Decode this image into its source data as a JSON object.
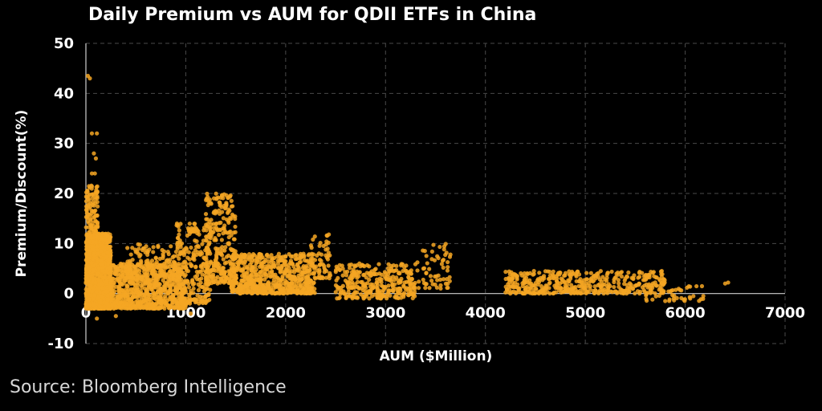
{
  "chart_data": {
    "type": "scatter",
    "title": "Daily Premium vs AUM for QDII ETFs in China",
    "xlabel": "AUM ($Million)",
    "ylabel": "Premium/Discount(%)",
    "xlim": [
      0,
      7000
    ],
    "ylim": [
      -10,
      50
    ],
    "xticks": [
      0,
      1000,
      2000,
      3000,
      4000,
      5000,
      6000,
      7000
    ],
    "yticks": [
      -10,
      0,
      10,
      20,
      30,
      40,
      50
    ],
    "grid": true,
    "point_color": "#f5a623",
    "clusters": [
      {
        "x": [
          0,
          250
        ],
        "y": [
          -3,
          12
        ],
        "n": 1200
      },
      {
        "x": [
          0,
          120
        ],
        "y": [
          8,
          22
        ],
        "n": 160
      },
      {
        "x": [
          200,
          1000
        ],
        "y": [
          -3,
          6
        ],
        "n": 800
      },
      {
        "x": [
          400,
          900
        ],
        "y": [
          3,
          10
        ],
        "n": 120
      },
      {
        "x": [
          900,
          1250
        ],
        "y": [
          -2,
          14
        ],
        "n": 250
      },
      {
        "x": [
          1200,
          1500
        ],
        "y": [
          2,
          20
        ],
        "n": 280
      },
      {
        "x": [
          1450,
          2300
        ],
        "y": [
          0,
          8
        ],
        "n": 650
      },
      {
        "x": [
          2250,
          2450
        ],
        "y": [
          3,
          12
        ],
        "n": 60
      },
      {
        "x": [
          2500,
          3300
        ],
        "y": [
          -1,
          6
        ],
        "n": 320
      },
      {
        "x": [
          3300,
          3650
        ],
        "y": [
          1,
          10
        ],
        "n": 60
      },
      {
        "x": [
          4200,
          5800
        ],
        "y": [
          0,
          4.5
        ],
        "n": 450
      },
      {
        "x": [
          5600,
          6200
        ],
        "y": [
          -1.5,
          1.5
        ],
        "n": 40
      }
    ],
    "points": [
      {
        "x": 20,
        "y": 43.5
      },
      {
        "x": 40,
        "y": 43
      },
      {
        "x": 60,
        "y": 32
      },
      {
        "x": 110,
        "y": 32
      },
      {
        "x": 80,
        "y": 28
      },
      {
        "x": 100,
        "y": 27
      },
      {
        "x": 60,
        "y": 24
      },
      {
        "x": 90,
        "y": 24
      },
      {
        "x": 6400,
        "y": 2
      },
      {
        "x": 6430,
        "y": 2.2
      },
      {
        "x": 110,
        "y": -5
      },
      {
        "x": 300,
        "y": -4.5
      },
      {
        "x": 1050,
        "y": -4
      },
      {
        "x": 5800,
        "y": -1.5
      },
      {
        "x": 6050,
        "y": -1
      }
    ]
  },
  "source": "Source: Bloomberg Intelligence"
}
